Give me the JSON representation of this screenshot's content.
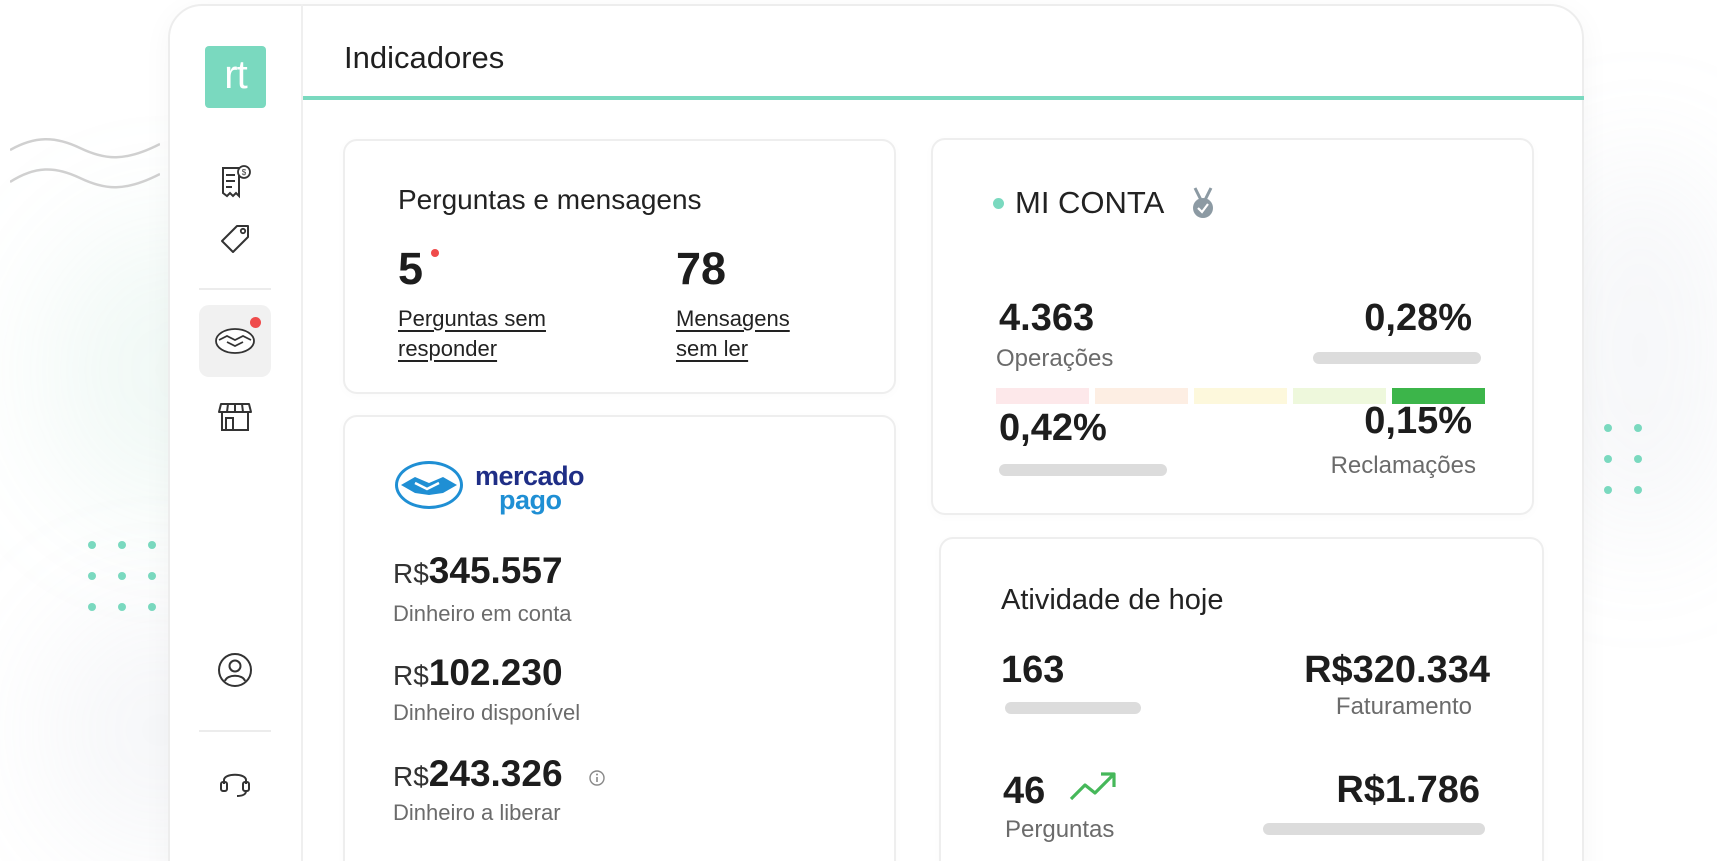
{
  "header": {
    "title": "Indicadores"
  },
  "sidebar": {
    "logo": "rt"
  },
  "questions_card": {
    "title": "Perguntas e mensagens",
    "unanswered_count": "5",
    "unanswered_label": "Perguntas sem responder",
    "messages_count": "78",
    "messages_label": "Mensagens sem ler"
  },
  "mercado_pago": {
    "brand_line1": "mercado",
    "brand_line2": "pago",
    "currency": "R$",
    "balance": "345.557",
    "balance_label": "Dinheiro em conta",
    "available": "102.230",
    "available_label": "Dinheiro disponível",
    "pending": "243.326",
    "pending_label": "Dinheiro a liberar"
  },
  "mi_conta": {
    "title": "MI CONTA",
    "reputation_levels": [
      "#fde8ea",
      "#fdeee3",
      "#fdf8dc",
      "#eef8dc",
      "#3cb54a"
    ],
    "operations": "4.363",
    "operations_label": "Operações",
    "rate1": "0,28%",
    "rate2": "0,42%",
    "claims": "0,15%",
    "claims_label": "Reclamações"
  },
  "today": {
    "title": "Atividade de hoje",
    "visits": "163",
    "revenue": "R$320.334",
    "revenue_label": "Faturamento",
    "questions": "46",
    "questions_label": "Perguntas",
    "ticket": "R$1.786"
  },
  "colors": {
    "accent": "#7ad9bf",
    "alert": "#ef4b4b",
    "trend": "#46b85a",
    "mp_blue": "#1f2e86"
  }
}
